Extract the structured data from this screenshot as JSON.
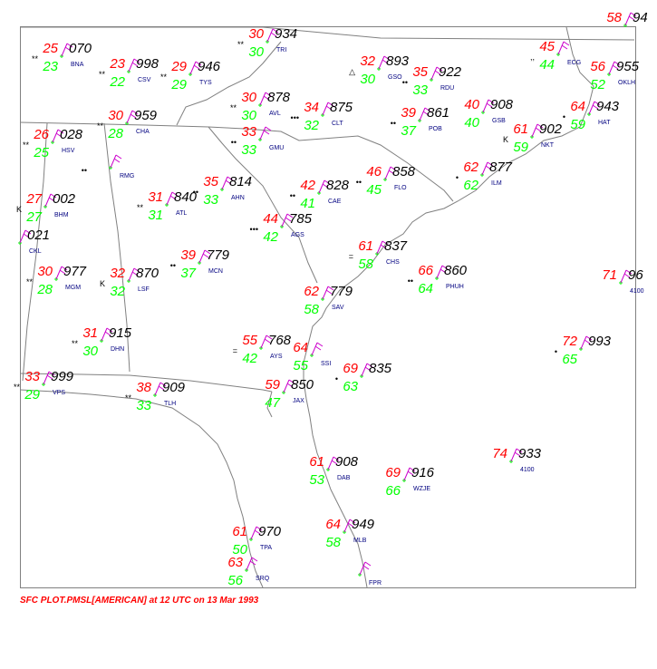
{
  "caption": "SFC PLOT.PMSL[AMERICAN] at 12 UTC on 13 Mar 1993",
  "colors": {
    "temperature": "#ff0000",
    "dewpoint": "#00ff00",
    "pressure": "#000000",
    "station_id": "#000080",
    "border": "#808080",
    "wind_barb": "#cc00cc",
    "weather": "#000000"
  },
  "stations": [
    {
      "id": "BNA",
      "t": "25",
      "td": "23",
      "p": "070",
      "wx": "**"
    },
    {
      "id": "CSV",
      "t": "23",
      "td": "22",
      "p": "998",
      "wx": "**"
    },
    {
      "id": "TYS",
      "t": "29",
      "td": "29",
      "p": "946",
      "wx": "**"
    },
    {
      "id": "TRI",
      "t": "30",
      "td": "30",
      "p": "934",
      "wx": "**"
    },
    {
      "id": "GSO",
      "t": "32",
      "td": "30",
      "p": "893",
      "wx": "△"
    },
    {
      "id": "RDU",
      "t": "35",
      "td": "33",
      "p": "922",
      "wx": "••"
    },
    {
      "id": "ECG",
      "t": "45",
      "td": "44",
      "p": "",
      "wx": ",,"
    },
    {
      "id": "OKLH",
      "t": "56",
      "td": "52",
      "p": "955",
      "wx": ""
    },
    {
      "id": "HSV",
      "t": "26",
      "td": "25",
      "p": "028",
      "wx": "**"
    },
    {
      "id": "CHA",
      "t": "30",
      "td": "28",
      "p": "959",
      "wx": "**"
    },
    {
      "id": "AVL",
      "t": "30",
      "td": "30",
      "p": "878",
      "wx": "**"
    },
    {
      "id": "CLT",
      "t": "34",
      "td": "32",
      "p": "875",
      "wx": "•••"
    },
    {
      "id": "POB",
      "t": "39",
      "td": "37",
      "p": "861",
      "wx": "••"
    },
    {
      "id": "GSB",
      "t": "40",
      "td": "40",
      "p": "908",
      "wx": ""
    },
    {
      "id": "HAT",
      "t": "64",
      "td": "59",
      "p": "943",
      "wx": "•"
    },
    {
      "id": "NKT",
      "t": "61",
      "td": "59",
      "p": "902",
      "wx": "K"
    },
    {
      "id": "GMU",
      "t": "33",
      "td": "33",
      "p": "",
      "wx": "••"
    },
    {
      "id": "RMG",
      "t": "",
      "td": "",
      "p": "",
      "wx": "••"
    },
    {
      "id": "FLO",
      "t": "46",
      "td": "45",
      "p": "858",
      "wx": "••"
    },
    {
      "id": "ILM",
      "t": "62",
      "td": "62",
      "p": "877",
      "wx": "•"
    },
    {
      "id": "BHM",
      "t": "27",
      "td": "27",
      "p": "002",
      "wx": "K"
    },
    {
      "id": "ATL",
      "t": "31",
      "td": "31",
      "p": "840",
      "wx": "**"
    },
    {
      "id": "AHN",
      "t": "35",
      "td": "33",
      "p": "814",
      "wx": "••"
    },
    {
      "id": "CAE",
      "t": "42",
      "td": "41",
      "p": "828",
      "wx": "••"
    },
    {
      "id": "AGS",
      "t": "44",
      "td": "42",
      "p": "785",
      "wx": "•••"
    },
    {
      "id": "CKL",
      "t": "",
      "td": "",
      "p": "021",
      "wx": ""
    },
    {
      "id": "MGM",
      "t": "30",
      "td": "28",
      "p": "977",
      "wx": "**"
    },
    {
      "id": "LSF",
      "t": "32",
      "td": "32",
      "p": "870",
      "wx": "K"
    },
    {
      "id": "MCN",
      "t": "39",
      "td": "37",
      "p": "779",
      "wx": "••"
    },
    {
      "id": "CHS",
      "t": "61",
      "td": "58",
      "p": "837",
      "wx": "="
    },
    {
      "id": "PHUH",
      "t": "66",
      "td": "64",
      "p": "860",
      "wx": "••"
    },
    {
      "id": "SAV",
      "t": "62",
      "td": "58",
      "p": "779",
      "wx": ""
    },
    {
      "id": "4100",
      "t": "71",
      "td": "",
      "p": "96",
      "wx": ""
    },
    {
      "id": "DHN",
      "t": "31",
      "td": "30",
      "p": "915",
      "wx": "**"
    },
    {
      "id": "AYS",
      "t": "55",
      "td": "42",
      "p": "768",
      "wx": "="
    },
    {
      "id": "SSI",
      "t": "64",
      "td": "55",
      "p": "",
      "wx": ""
    },
    {
      "id": "",
      "t": "69",
      "td": "63",
      "p": "835",
      "wx": "•"
    },
    {
      "id": "",
      "t": "72",
      "td": "65",
      "p": "993",
      "wx": "•"
    },
    {
      "id": "VPS",
      "t": "33",
      "td": "29",
      "p": "999",
      "wx": "**"
    },
    {
      "id": "TLH",
      "t": "38",
      "td": "33",
      "p": "909",
      "wx": "**"
    },
    {
      "id": "JAX",
      "t": "59",
      "td": "47",
      "p": "850",
      "wx": ""
    },
    {
      "id": "DAB",
      "t": "61",
      "td": "53",
      "p": "908",
      "wx": ""
    },
    {
      "id": "WZJE",
      "t": "69",
      "td": "66",
      "p": "916",
      "wx": ""
    },
    {
      "id": "4100",
      "t": "74",
      "td": "",
      "p": "933",
      "wx": ""
    },
    {
      "id": "TPA",
      "t": "61",
      "td": "50",
      "p": "970",
      "wx": ""
    },
    {
      "id": "MLB",
      "t": "64",
      "td": "58",
      "p": "949",
      "wx": ""
    },
    {
      "id": "SRQ",
      "t": "63",
      "td": "56",
      "p": "",
      "wx": ""
    },
    {
      "id": "FPR",
      "t": "",
      "td": "",
      "p": "",
      "wx": ""
    },
    {
      "id": "",
      "t": "58",
      "td": "",
      "p": "94",
      "wx": ""
    }
  ]
}
